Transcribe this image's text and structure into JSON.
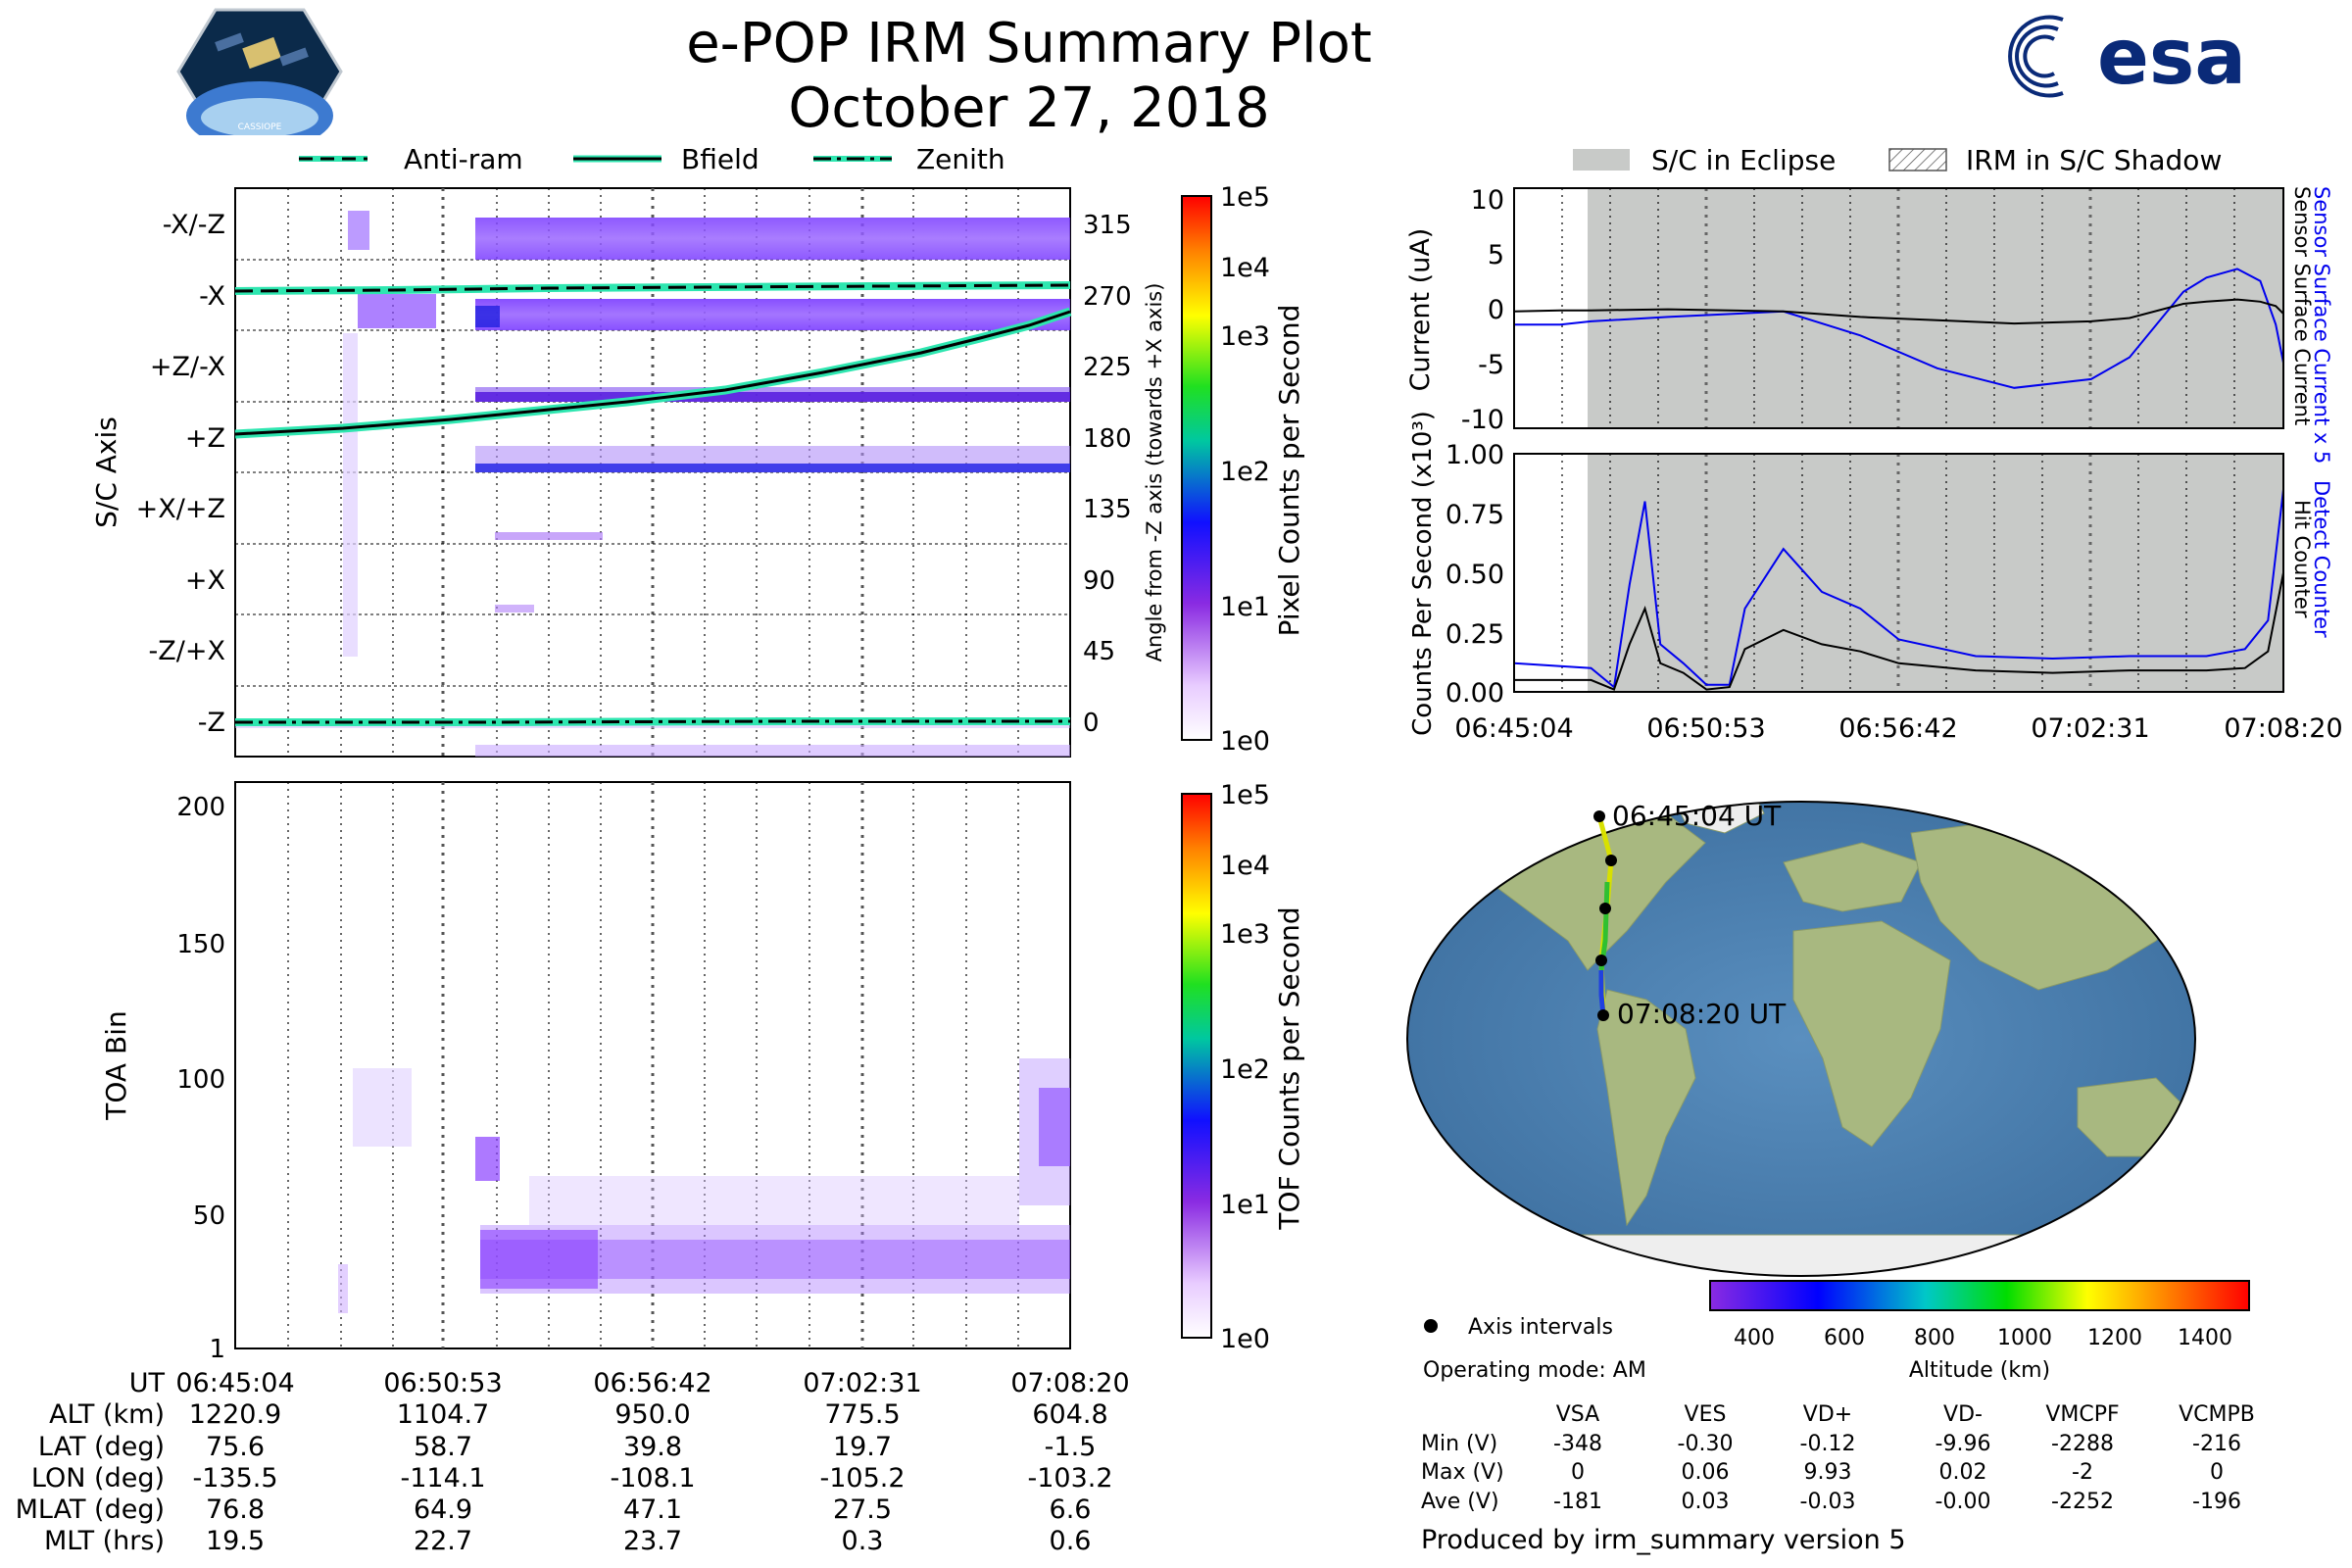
{
  "title": "e-POP IRM Summary Plot",
  "date": "October 27, 2018",
  "logos": {
    "left_text": "CASSIOPE",
    "right_text": "esa"
  },
  "colors": {
    "cyan": "#2ee6b0",
    "blue_line": "#0000ee",
    "eclipse": "#c8cac8",
    "purple": "#8a2be2"
  },
  "legend_top": [
    {
      "label": "Anti-ram",
      "style": "dashed"
    },
    {
      "label": "Bfield",
      "style": "solid"
    },
    {
      "label": "Zenith",
      "style": "dashdot"
    }
  ],
  "legend_right": [
    {
      "label": "S/C in Eclipse",
      "style": "gray-fill"
    },
    {
      "label": "IRM in S/C Shadow",
      "style": "hatch"
    }
  ],
  "chart_data": [
    {
      "type": "heatmap",
      "name": "sc-axis-spectrogram",
      "ylabel": "S/C Axis",
      "y2label": "Angle from -Z axis (towards +X axis)",
      "row_labels": [
        "-X/-Z",
        "-X",
        "+Z/-X",
        "+Z",
        "+X/+Z",
        "+X",
        "-Z/+X",
        "-Z"
      ],
      "angle_ticks": [
        "315",
        "270",
        "225",
        "180",
        "135",
        "90",
        "45",
        "0"
      ],
      "colorbar_label": "Pixel Counts per Second",
      "colorbar_ticks": [
        "1e0",
        "1e1",
        "1e2",
        "1e3",
        "1e4",
        "1e5"
      ],
      "lines": [
        {
          "name": "Anti-ram",
          "style": "dashed",
          "angle_deg": [
            270,
            272,
            273,
            274,
            274,
            275
          ]
        },
        {
          "name": "Bfield",
          "style": "solid",
          "angle_deg": [
            200,
            204,
            210,
            222,
            238,
            265
          ]
        },
        {
          "name": "Zenith",
          "style": "dashdot",
          "angle_deg": [
            0,
            0,
            0,
            0,
            0,
            0
          ]
        }
      ]
    },
    {
      "type": "heatmap",
      "name": "toa-spectrogram",
      "ylabel": "TOA Bin",
      "yticks": [
        "1",
        "50",
        "100",
        "150",
        "200"
      ],
      "colorbar_label": "TOF Counts per Second",
      "colorbar_ticks": [
        "1e0",
        "1e1",
        "1e2",
        "1e3",
        "1e4",
        "1e5"
      ]
    },
    {
      "type": "line",
      "name": "current",
      "ylabel": "Current (uA)",
      "y2label_1": "Sensor Surface Current x 5",
      "y2label_2": "Sensor Surface Current",
      "yticks": [
        "10",
        "5",
        "0",
        "-5",
        "-10"
      ],
      "ylim": [
        -11,
        11
      ],
      "x": [
        0,
        0.06,
        0.1,
        0.2,
        0.35,
        0.45,
        0.55,
        0.65,
        0.75,
        0.8,
        0.87,
        0.9,
        0.94,
        0.97,
        0.99,
        1.0
      ],
      "series": [
        {
          "name": "Sensor Surface Current x 5",
          "color": "#0000ee",
          "values": [
            -1.5,
            -1.5,
            -1.2,
            -0.8,
            -0.3,
            -2.5,
            -5.5,
            -7.3,
            -6.5,
            -4.5,
            1.5,
            2.8,
            3.6,
            2.5,
            -1.5,
            -5
          ]
        },
        {
          "name": "Sensor Surface Current",
          "color": "#000000",
          "values": [
            -0.3,
            -0.2,
            -0.2,
            -0.1,
            -0.3,
            -0.8,
            -1.1,
            -1.4,
            -1.2,
            -0.9,
            0.4,
            0.6,
            0.8,
            0.6,
            0.2,
            -0.5
          ]
        }
      ]
    },
    {
      "type": "line",
      "name": "counts",
      "ylabel": "Counts Per Second (x10³)",
      "y2label_1": "Detect Counter",
      "y2label_2": "Hit Counter",
      "yticks": [
        "1.00",
        "0.75",
        "0.50",
        "0.25",
        "0.00"
      ],
      "ylim": [
        0,
        1
      ],
      "x_ticks": [
        "06:45:04",
        "06:50:53",
        "06:56:42",
        "07:02:31",
        "07:08:20"
      ],
      "x": [
        0,
        0.1,
        0.13,
        0.15,
        0.17,
        0.19,
        0.22,
        0.25,
        0.28,
        0.3,
        0.35,
        0.4,
        0.45,
        0.5,
        0.6,
        0.7,
        0.8,
        0.9,
        0.95,
        0.98,
        1.0
      ],
      "series": [
        {
          "name": "Detect Counter",
          "color": "#0000ee",
          "values": [
            0.12,
            0.1,
            0.02,
            0.45,
            0.8,
            0.2,
            0.12,
            0.03,
            0.03,
            0.35,
            0.6,
            0.42,
            0.35,
            0.22,
            0.15,
            0.14,
            0.15,
            0.15,
            0.18,
            0.3,
            0.85
          ]
        },
        {
          "name": "Hit Counter",
          "color": "#000000",
          "values": [
            0.05,
            0.05,
            0.01,
            0.2,
            0.35,
            0.12,
            0.08,
            0.01,
            0.02,
            0.18,
            0.26,
            0.2,
            0.17,
            0.12,
            0.09,
            0.08,
            0.09,
            0.09,
            0.1,
            0.17,
            0.5
          ]
        }
      ]
    }
  ],
  "x_axis_ticks": [
    "06:45:04",
    "06:50:53",
    "06:56:42",
    "07:02:31",
    "07:08:20"
  ],
  "ephemeris": {
    "labels": [
      "UT",
      "ALT (km)",
      "LAT (deg)",
      "LON (deg)",
      "MLAT (deg)",
      "MLT (hrs)"
    ],
    "rows": [
      [
        "1220.9",
        "1104.7",
        "950.0",
        "775.5",
        "604.8"
      ],
      [
        "75.6",
        "58.7",
        "39.8",
        "19.7",
        "-1.5"
      ],
      [
        "-135.5",
        "-114.1",
        "-108.1",
        "-105.2",
        "-103.2"
      ],
      [
        "76.8",
        "64.9",
        "47.1",
        "27.5",
        "6.6"
      ],
      [
        "19.5",
        "22.7",
        "23.7",
        "0.3",
        "0.6"
      ]
    ]
  },
  "map": {
    "start_label": "06:45:04 UT",
    "end_label": "07:08:20 UT",
    "legend_label": "Axis intervals",
    "altitude_label": "Altitude (km)",
    "altitude_ticks": [
      "400",
      "600",
      "800",
      "1000",
      "1200",
      "1400"
    ]
  },
  "operating_mode": "Operating mode: AM",
  "stats": {
    "columns": [
      "VSA",
      "VES",
      "VD+",
      "VD-",
      "VMCPF",
      "VCMPB"
    ],
    "rows": [
      {
        "label": "Min (V)",
        "values": [
          "-348",
          "-0.30",
          "-0.12",
          "-9.96",
          "-2288",
          "-216"
        ]
      },
      {
        "label": "Max (V)",
        "values": [
          "0",
          "0.06",
          "9.93",
          "0.02",
          "-2",
          "0"
        ]
      },
      {
        "label": "Ave (V)",
        "values": [
          "-181",
          "0.03",
          "-0.03",
          "-0.00",
          "-2252",
          "-196"
        ]
      }
    ]
  },
  "footer": "Produced by irm_summary version 5"
}
